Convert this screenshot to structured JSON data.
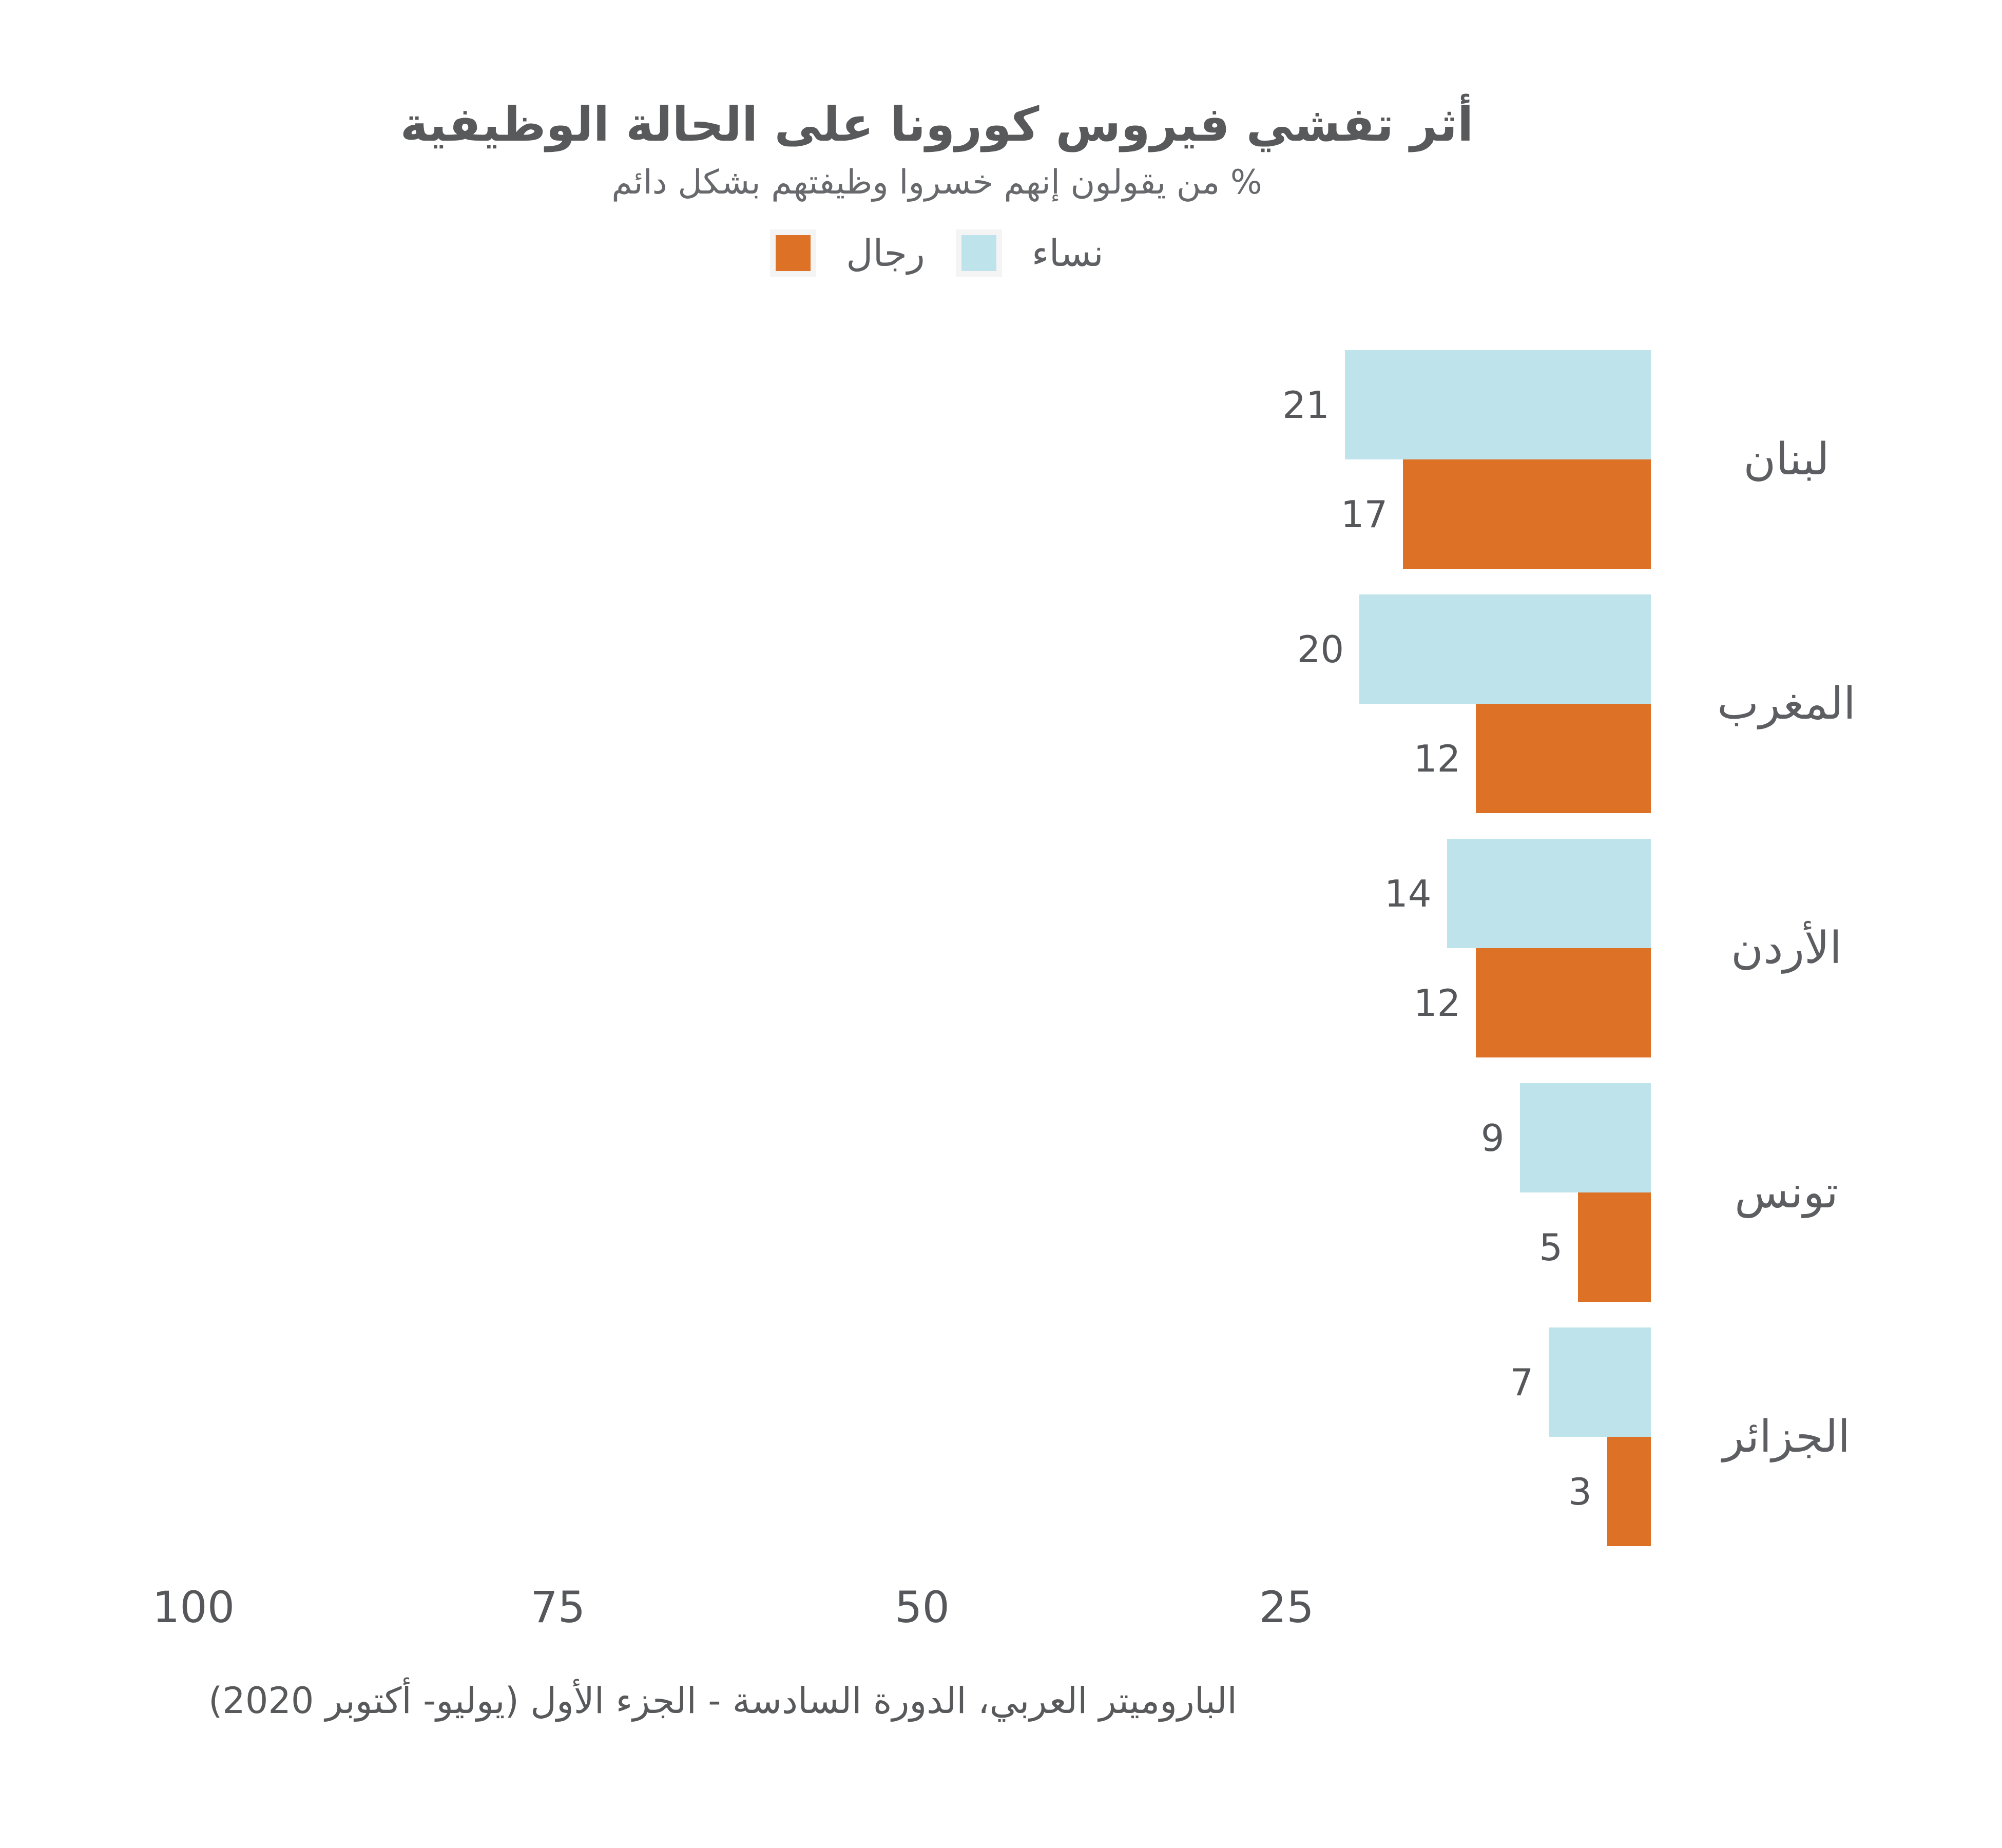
{
  "chart_data": {
    "type": "bar",
    "orientation": "horizontal",
    "direction": "rtl",
    "title": "أثر تفشي فيروس كورونا على الحالة الوظيفية",
    "subtitle": "% من يقولون إنهم خسروا وظيفتهم بشكل دائم",
    "categories": [
      "لبنان",
      "المغرب",
      "الأردن",
      "تونس",
      "الجزائر"
    ],
    "series": [
      {
        "name": "نساء",
        "color": "#bee3eb",
        "values": [
          21,
          20,
          14,
          9,
          7
        ]
      },
      {
        "name": "رجال",
        "color": "#dd7227",
        "values": [
          17,
          12,
          12,
          5,
          3
        ]
      }
    ],
    "xlim": [
      0,
      100
    ],
    "x_ticks": [
      100,
      75,
      50,
      25
    ],
    "grid": false,
    "legend_position": "top-center",
    "value_labels": true
  },
  "source": "الباروميتر العربي، الدورة السادسة - الجزء الأول (يوليو- أكتوبر 2020)"
}
